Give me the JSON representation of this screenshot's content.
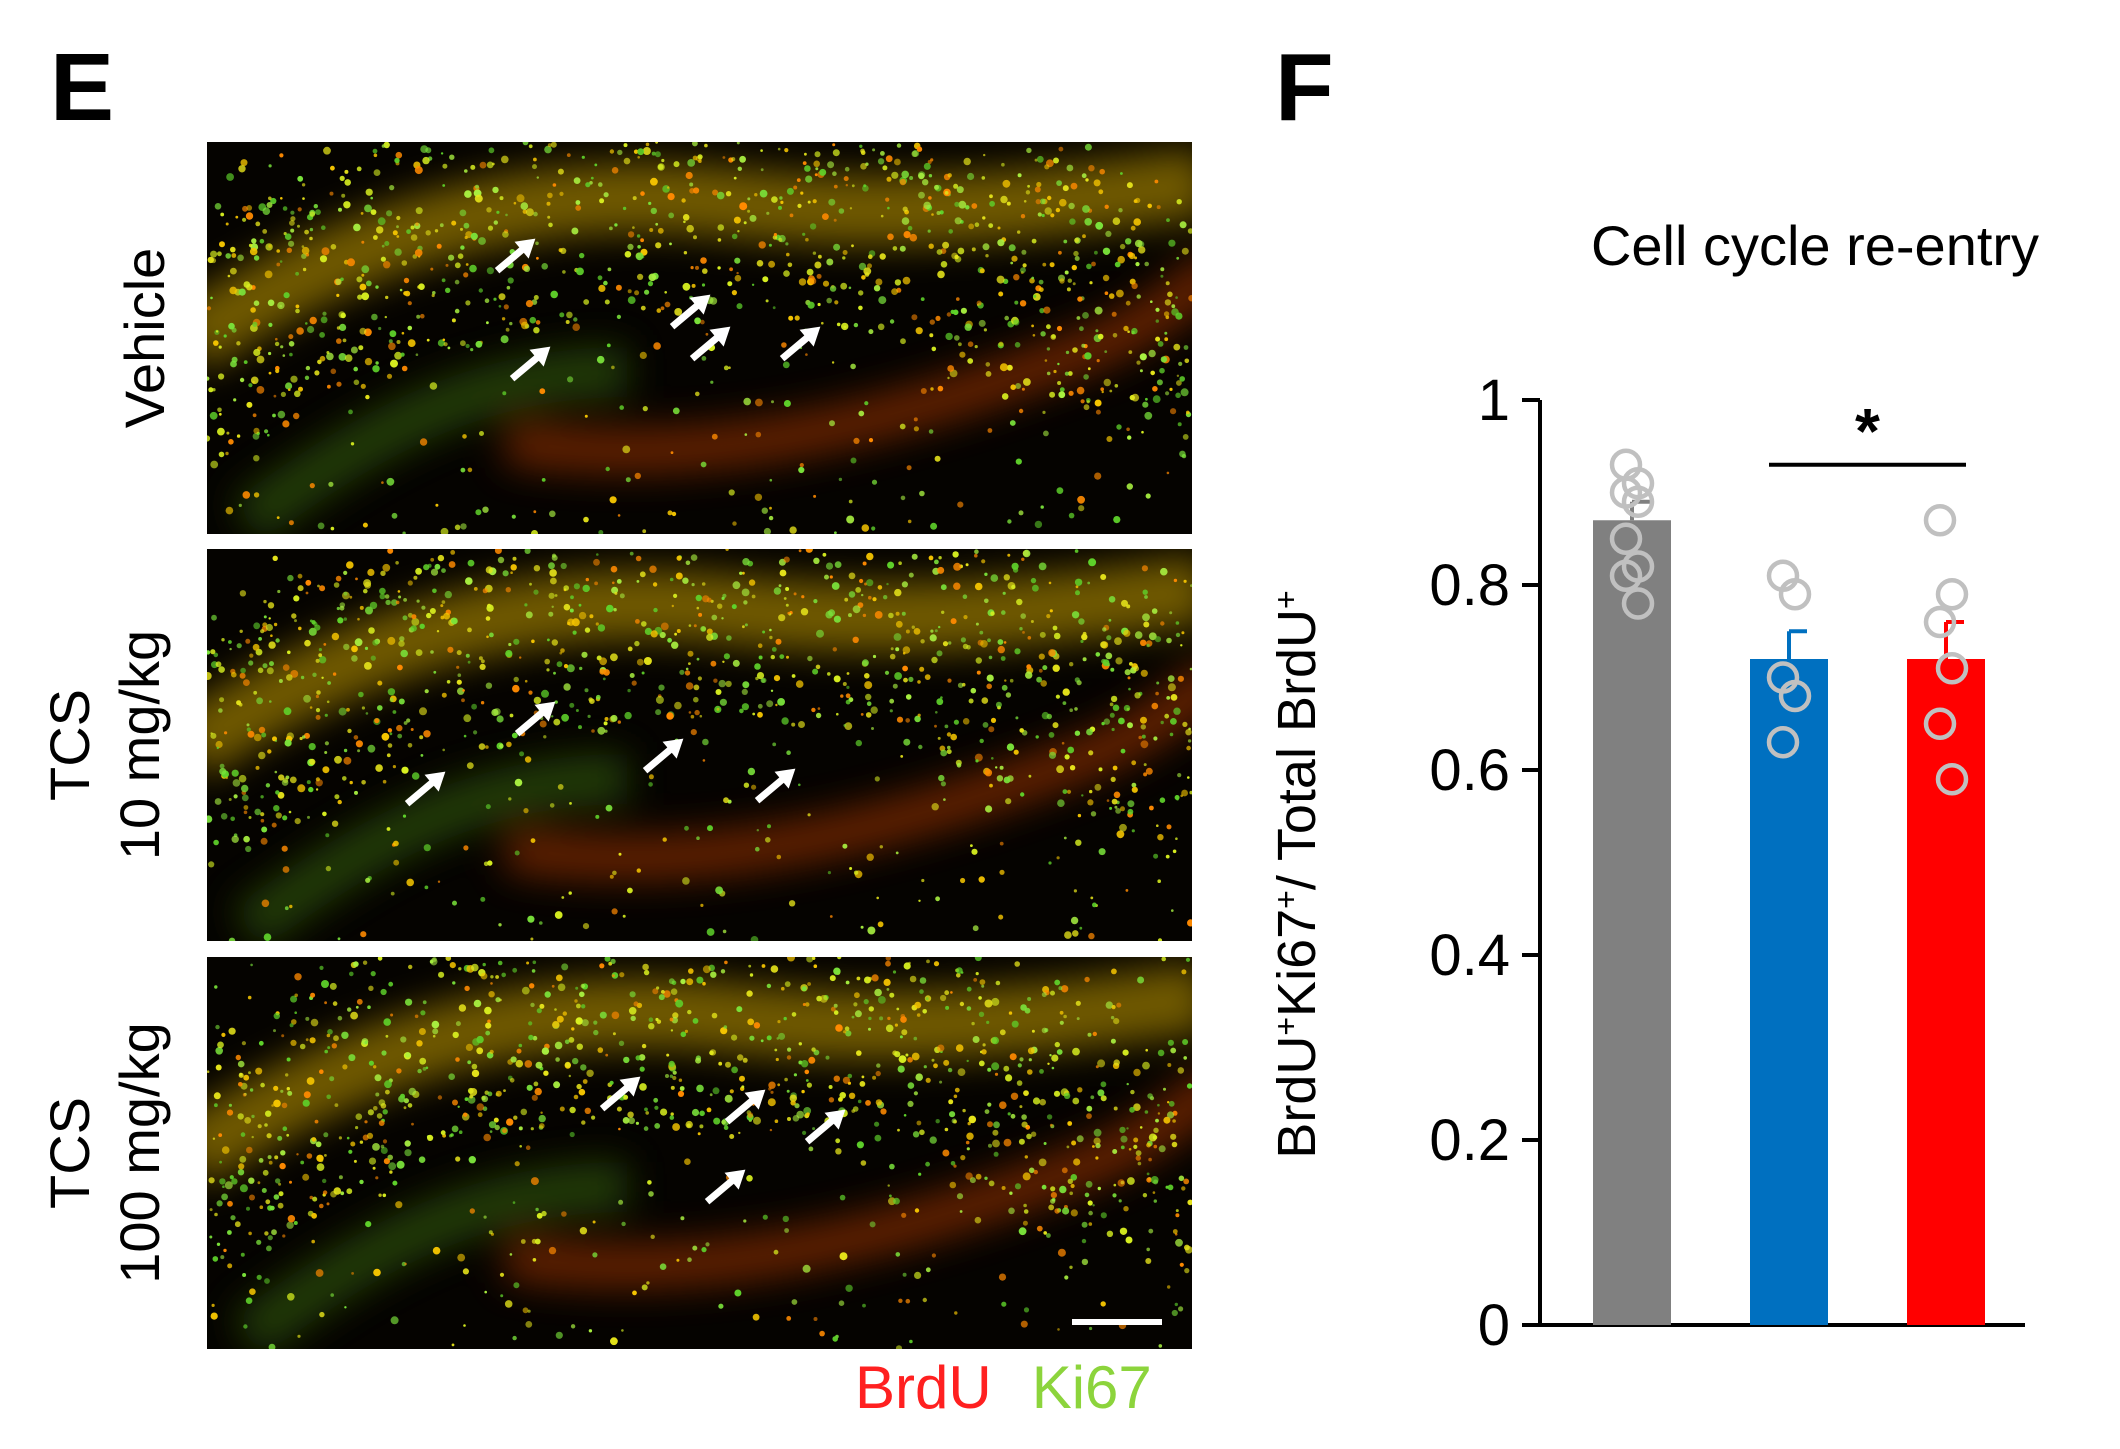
{
  "figure": {
    "panel_e_letter": "E",
    "panel_f_letter": "F"
  },
  "panel_e": {
    "rows": [
      {
        "line1": "Vehicle",
        "line2": ""
      },
      {
        "line1": "TCS",
        "line2": "10 mg/kg"
      },
      {
        "line1": "TCS",
        "line2": "100 mg/kg"
      }
    ],
    "channels": [
      {
        "name": "BrdU",
        "color": "#ff2020"
      },
      {
        "name": "Ki67",
        "color": "#8cd43c"
      }
    ]
  },
  "chart_data": {
    "type": "bar",
    "title": "Cell cycle re-entry",
    "ylabel_parts": [
      "BrdU",
      "+",
      "Ki67",
      "+",
      "/ Total BrdU",
      "+"
    ],
    "categories": [
      "",
      "",
      ""
    ],
    "values": [
      0.87,
      0.72,
      0.72
    ],
    "errors": [
      0.02,
      0.03,
      0.04
    ],
    "colors": [
      "#808080",
      "#0070c0",
      "#ff0000"
    ],
    "points": [
      [
        0.93,
        0.91,
        0.9,
        0.89,
        0.85,
        0.82,
        0.81,
        0.78
      ],
      [
        0.81,
        0.79,
        0.7,
        0.68,
        0.63
      ],
      [
        0.87,
        0.79,
        0.76,
        0.71,
        0.65,
        0.59
      ]
    ],
    "ylim": [
      0,
      1
    ],
    "yticks": [
      0,
      0.2,
      0.4,
      0.6,
      0.8,
      1
    ],
    "ytick_labels": [
      "0",
      "0.2",
      "0.4",
      "0.6",
      "0.8",
      "1"
    ],
    "significance": [
      {
        "from": 1,
        "to": 2,
        "label": "*"
      }
    ],
    "grid": false,
    "legend": "none"
  }
}
